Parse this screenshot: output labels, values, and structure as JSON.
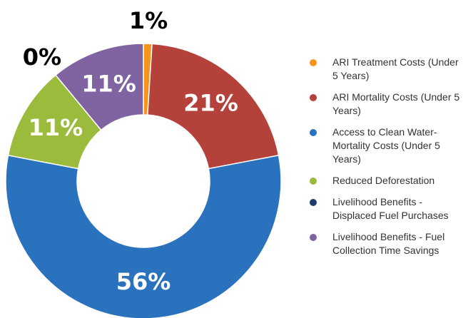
{
  "chart_data": {
    "type": "donut",
    "categories": [
      "ARI Treatment Costs (Under 5 Years)",
      "ARI Mortality Costs (Under 5 Years)",
      "Access to Clean Water-Mortality Costs (Under 5 Years)",
      "Reduced Deforestation",
      "Livelihood Benefits - Displaced Fuel Purchases",
      "Livelihood Benefits - Fuel Collection Time Savings"
    ],
    "values": [
      1,
      21,
      56,
      11,
      0,
      11
    ],
    "value_labels": [
      "1%",
      "21%",
      "56%",
      "11%",
      "0%",
      "11%"
    ],
    "colors": [
      "#f7941d",
      "#b5413b",
      "#2a72bd",
      "#9bbb3c",
      "#1f3c6e",
      "#8064a2"
    ],
    "legend": "right"
  }
}
